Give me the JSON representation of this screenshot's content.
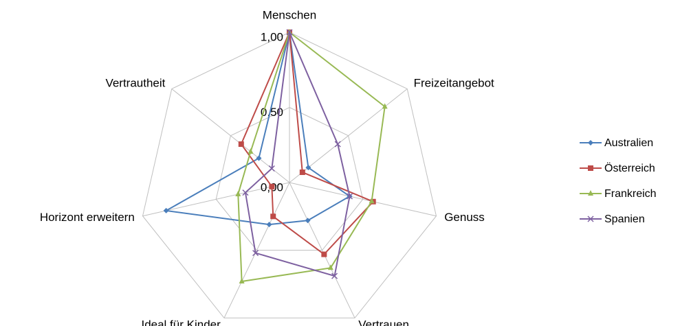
{
  "chart_data": {
    "type": "radar",
    "categories": [
      "Menschen",
      "Freizeitangebot",
      "Genuss",
      "Vertrauen",
      "Ideal für Kinder",
      "Horizont erweitern",
      "Vertrautheit"
    ],
    "series": [
      {
        "name": "Australien",
        "color": "#4a7ebb",
        "marker": "diamond",
        "values": [
          1.0,
          0.16,
          0.41,
          0.28,
          0.31,
          0.84,
          0.26
        ]
      },
      {
        "name": "Österreich",
        "color": "#be4b48",
        "marker": "square",
        "values": [
          1.0,
          0.11,
          0.57,
          0.53,
          0.25,
          0.12,
          0.41
        ]
      },
      {
        "name": "Frankreich",
        "color": "#98b954",
        "marker": "triangle",
        "values": [
          1.0,
          0.81,
          0.56,
          0.63,
          0.73,
          0.35,
          0.33
        ]
      },
      {
        "name": "Spanien",
        "color": "#7d60a0",
        "marker": "x",
        "values": [
          1.0,
          0.41,
          0.41,
          0.69,
          0.52,
          0.3,
          0.15
        ]
      }
    ],
    "ylim": [
      0,
      1
    ],
    "yticks": [
      {
        "value": 0,
        "label": "0,00"
      },
      {
        "value": 0.5,
        "label": "0,50"
      },
      {
        "value": 1,
        "label": "1,00"
      }
    ],
    "grid": true,
    "legend": "right"
  }
}
